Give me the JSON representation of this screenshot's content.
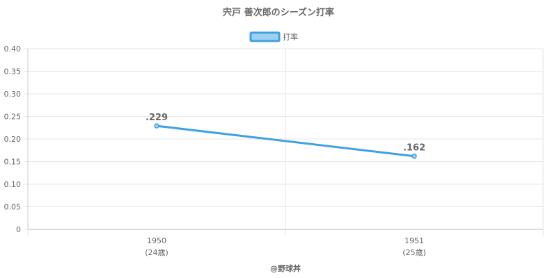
{
  "chart_data": {
    "type": "line",
    "title": "宍戸 善次郎のシーズン打率",
    "categories": [
      "1950",
      "1951"
    ],
    "category_sublabels": [
      "(24歳)",
      "(25歳)"
    ],
    "series": [
      {
        "name": "打率",
        "values": [
          0.229,
          0.162
        ],
        "data_labels": [
          ".229",
          ".162"
        ],
        "color": "#3ea1e4",
        "fill_color": "#9fcff1"
      }
    ],
    "ylim": [
      0,
      0.4
    ],
    "yticks": [
      0,
      0.05,
      0.1,
      0.15,
      0.2,
      0.25,
      0.3,
      0.35,
      0.4
    ],
    "ytick_labels": [
      "0",
      "0.05",
      "0.10",
      "0.15",
      "0.20",
      "0.25",
      "0.30",
      "0.35",
      "0.40"
    ],
    "xlabel": "",
    "ylabel": "",
    "grid": true,
    "legend_position": "top-center"
  },
  "credit": "@野球丼"
}
